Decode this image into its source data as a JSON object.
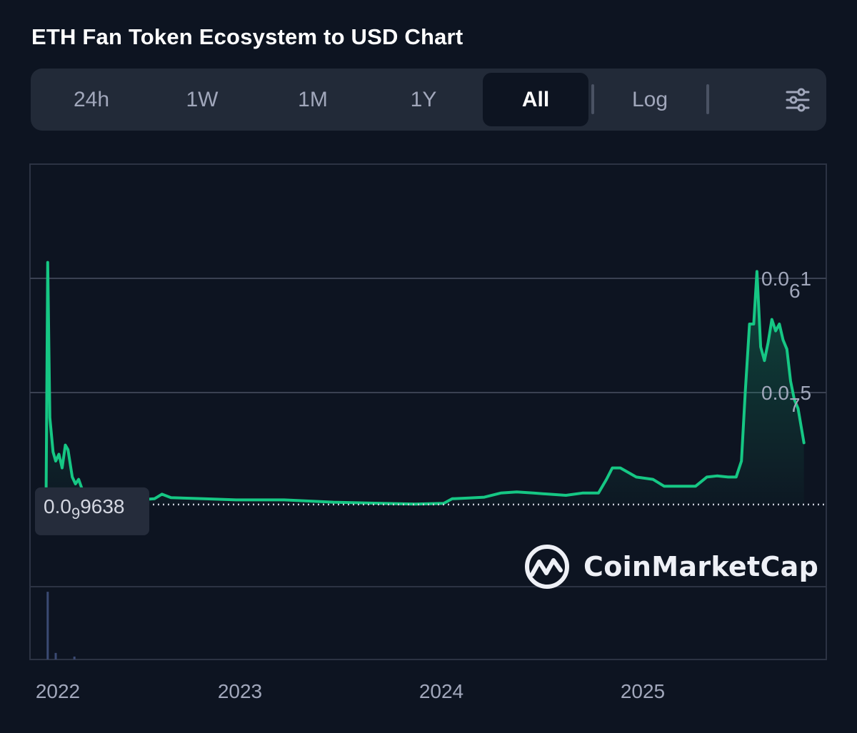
{
  "title": "ETH Fan Token Ecosystem to USD Chart",
  "range_tabs": [
    {
      "label": "24h",
      "active": false
    },
    {
      "label": "1W",
      "active": false
    },
    {
      "label": "1M",
      "active": false
    },
    {
      "label": "1Y",
      "active": false
    },
    {
      "label": "All",
      "active": true
    },
    {
      "label": "Log",
      "active": false
    }
  ],
  "icons": {
    "settings": "sliders-icon",
    "brand": "coinmarketcap-logo-icon"
  },
  "brand": "CoinMarketCap",
  "colors": {
    "background": "#0d1421",
    "line": "#16c784",
    "grid": "#3a4152",
    "tab_bar": "#222a38",
    "text_muted": "#a1a7bb"
  },
  "chart_data": {
    "type": "area",
    "x_ticks": [
      "2022",
      "2023",
      "2024",
      "2025"
    ],
    "y_labels": [
      {
        "value": 1e-07,
        "base": "0.0",
        "sub": "6",
        "tail": "1"
      },
      {
        "value": 5e-08,
        "base": "0.0",
        "sub": "7",
        "tail": "5"
      }
    ],
    "ylim": [
      -3.5e-08,
      1.5e-07
    ],
    "current_price": {
      "value": 9.638e-10,
      "base": "0.0",
      "sub": "9",
      "tail": "9638"
    },
    "grid": true,
    "series": [
      {
        "color": "#16c784",
        "points": [
          [
            "2021-11-25",
            1e-09
          ],
          [
            "2021-12-05",
            0
          ],
          [
            "2021-12-10",
            8e-09
          ],
          [
            "2021-12-13",
            1.07e-07
          ],
          [
            "2021-12-17",
            3.9e-08
          ],
          [
            "2021-12-23",
            2.4e-08
          ],
          [
            "2021-12-28",
            2e-08
          ],
          [
            "2022-01-03",
            2.3e-08
          ],
          [
            "2022-01-09",
            1.7e-08
          ],
          [
            "2022-01-15",
            2.7e-08
          ],
          [
            "2022-01-20",
            2.5e-08
          ],
          [
            "2022-01-28",
            1.3e-08
          ],
          [
            "2022-02-03",
            1e-08
          ],
          [
            "2022-02-09",
            1.2e-08
          ],
          [
            "2022-02-15",
            8e-09
          ],
          [
            "2022-02-25",
            7e-09
          ],
          [
            "2022-03-10",
            6e-09
          ],
          [
            "2022-04-01",
            5e-09
          ],
          [
            "2022-05-01",
            4e-09
          ],
          [
            "2022-06-01",
            3e-09
          ],
          [
            "2022-07-01",
            3.5e-09
          ],
          [
            "2022-07-15",
            5.5e-09
          ],
          [
            "2022-08-01",
            4e-09
          ],
          [
            "2022-10-01",
            3.5e-09
          ],
          [
            "2022-12-01",
            3e-09
          ],
          [
            "2023-03-01",
            3e-09
          ],
          [
            "2023-06-01",
            2e-09
          ],
          [
            "2023-09-01",
            1.5e-09
          ],
          [
            "2023-11-01",
            1.2e-09
          ],
          [
            "2023-12-25",
            1.5e-09
          ],
          [
            "2024-01-10",
            3.5e-09
          ],
          [
            "2024-02-10",
            3.8e-09
          ],
          [
            "2024-03-10",
            4.2e-09
          ],
          [
            "2024-04-10",
            6e-09
          ],
          [
            "2024-05-10",
            6.5e-09
          ],
          [
            "2024-06-10",
            6e-09
          ],
          [
            "2024-07-10",
            5.5e-09
          ],
          [
            "2024-08-10",
            5e-09
          ],
          [
            "2024-09-10",
            6e-09
          ],
          [
            "2024-10-10",
            6e-09
          ],
          [
            "2024-10-25",
            1.2e-08
          ],
          [
            "2024-11-05",
            1.7e-08
          ],
          [
            "2024-11-20",
            1.7e-08
          ],
          [
            "2024-12-05",
            1.5e-08
          ],
          [
            "2024-12-20",
            1.3e-08
          ],
          [
            "2025-01-20",
            1.2e-08
          ],
          [
            "2025-02-10",
            9e-09
          ],
          [
            "2025-03-10",
            9e-09
          ],
          [
            "2025-04-10",
            9e-09
          ],
          [
            "2025-05-01",
            1.3e-08
          ],
          [
            "2025-05-20",
            1.35e-08
          ],
          [
            "2025-06-10",
            1.3e-08
          ],
          [
            "2025-06-25",
            1.3e-08
          ],
          [
            "2025-07-05",
            2e-08
          ],
          [
            "2025-07-12",
            5e-08
          ],
          [
            "2025-07-20",
            8e-08
          ],
          [
            "2025-07-28",
            8e-08
          ],
          [
            "2025-08-03",
            1.03e-07
          ],
          [
            "2025-08-10",
            7e-08
          ],
          [
            "2025-08-17",
            6.4e-08
          ],
          [
            "2025-08-24",
            7.2e-08
          ],
          [
            "2025-08-31",
            8.2e-08
          ],
          [
            "2025-09-07",
            7.7e-08
          ],
          [
            "2025-09-14",
            8e-08
          ],
          [
            "2025-09-21",
            7.3e-08
          ],
          [
            "2025-09-28",
            6.9e-08
          ],
          [
            "2025-10-05",
            5.5e-08
          ],
          [
            "2025-10-12",
            4.7e-08
          ],
          [
            "2025-10-19",
            4.3e-08
          ],
          [
            "2025-10-30",
            2.8e-08
          ]
        ]
      }
    ],
    "volume": [
      {
        "date": "2021-12-13",
        "level": 0.93
      },
      {
        "date": "2021-12-28",
        "level": 0.09
      },
      {
        "date": "2022-02-01",
        "level": 0.04
      }
    ]
  }
}
